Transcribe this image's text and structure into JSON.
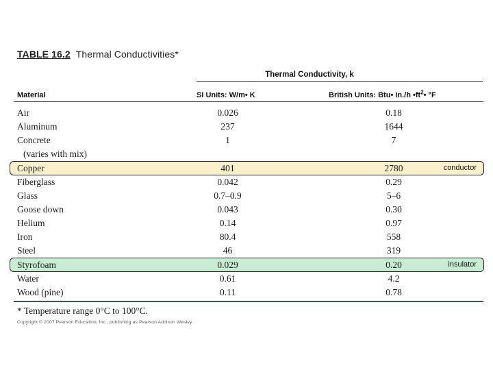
{
  "table": {
    "title_tag": "TABLE 16.2",
    "title": "Thermal Conductivities*",
    "group_header": "Thermal Conductivity, k",
    "columns": {
      "material": "Material",
      "si": "SI Units: W/m• K",
      "british": "British Units: Btu• in./h •ft²• °F"
    },
    "rows": [
      {
        "material": "Air",
        "si": "0.026",
        "british": "0.18"
      },
      {
        "material": "Aluminum",
        "si": "237",
        "british": "1644"
      },
      {
        "material": "Concrete",
        "si": "1",
        "british": "7"
      },
      {
        "material": "(varies with mix)",
        "si": "",
        "british": "",
        "indent": true
      },
      {
        "material": "Copper",
        "si": "401",
        "british": "2780",
        "highlight": "conductor"
      },
      {
        "material": "Fiberglass",
        "si": "0.042",
        "british": "0.29"
      },
      {
        "material": "Glass",
        "si": "0.7–0.9",
        "british": "5–6"
      },
      {
        "material": "Goose down",
        "si": "0.043",
        "british": "0.30"
      },
      {
        "material": "Helium",
        "si": "0.14",
        "british": "0.97"
      },
      {
        "material": "Iron",
        "si": "80.4",
        "british": "558"
      },
      {
        "material": "Steel",
        "si": "46",
        "british": "319"
      },
      {
        "material": "Styrofoam",
        "si": "0.029",
        "british": "0.20",
        "highlight": "insulator"
      },
      {
        "material": "Water",
        "si": "0.61",
        "british": "4.2"
      },
      {
        "material": "Wood (pine)",
        "si": "0.11",
        "british": "0.78"
      }
    ],
    "footnote": "* Temperature range 0°C to 100°C.",
    "copyright": "Copyright © 2007 Pearson Education, Inc., publishing as Pearson Addison Wesley."
  },
  "annotations": {
    "conductor": "conductor",
    "insulator": "insulator"
  },
  "colors": {
    "conductor_highlight": "#faf0cc",
    "insulator_highlight": "#c9ecd4",
    "highlight_border": "#1f1f1f"
  }
}
